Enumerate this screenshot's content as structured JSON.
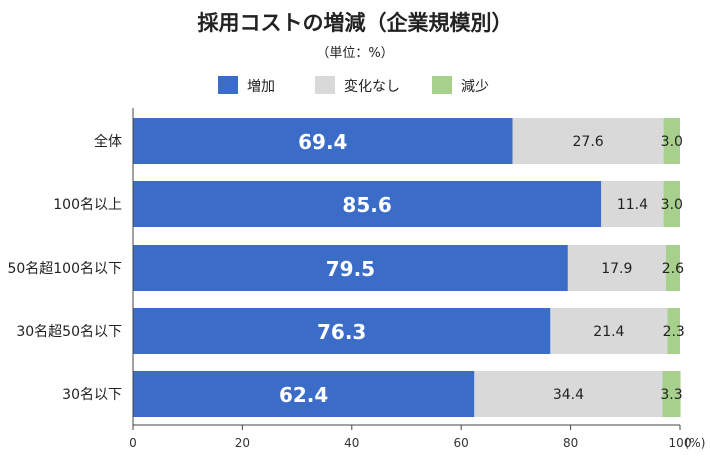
{
  "chart_data": {
    "type": "bar",
    "orientation": "horizontal",
    "stacked": true,
    "title": "採用コストの増減（企業規模別）",
    "subtitle": "（単位：%）",
    "categories": [
      "全体",
      "100名以上",
      "50名超100名以下",
      "30名超50名以下",
      "30名以下"
    ],
    "series": [
      {
        "name": "増加",
        "color": "#3a6cc8",
        "values": [
          69.4,
          85.6,
          79.5,
          76.3,
          62.4
        ]
      },
      {
        "name": "変化なし",
        "color": "#d9d9d9",
        "values": [
          27.6,
          11.4,
          17.9,
          21.4,
          34.4
        ]
      },
      {
        "name": "減少",
        "color": "#a8d08d",
        "values": [
          3.0,
          3.0,
          2.6,
          2.3,
          3.3
        ]
      }
    ],
    "value_labels": [
      [
        "69.4",
        "85.6",
        "79.5",
        "76.3",
        "62.4"
      ],
      [
        "27.6",
        "11.4",
        "17.9",
        "21.4",
        "34.4"
      ],
      [
        "3.0",
        "3.0",
        "2.6",
        "2.3",
        "3.3"
      ]
    ],
    "xlim": [
      0,
      100
    ],
    "xticks": [
      0,
      20,
      40,
      60,
      80,
      100
    ],
    "xtick_labels": [
      "0",
      "20",
      "40",
      "60",
      "80",
      "100"
    ],
    "xunit": "(%)",
    "legend_position": "top-center",
    "grid": false
  }
}
